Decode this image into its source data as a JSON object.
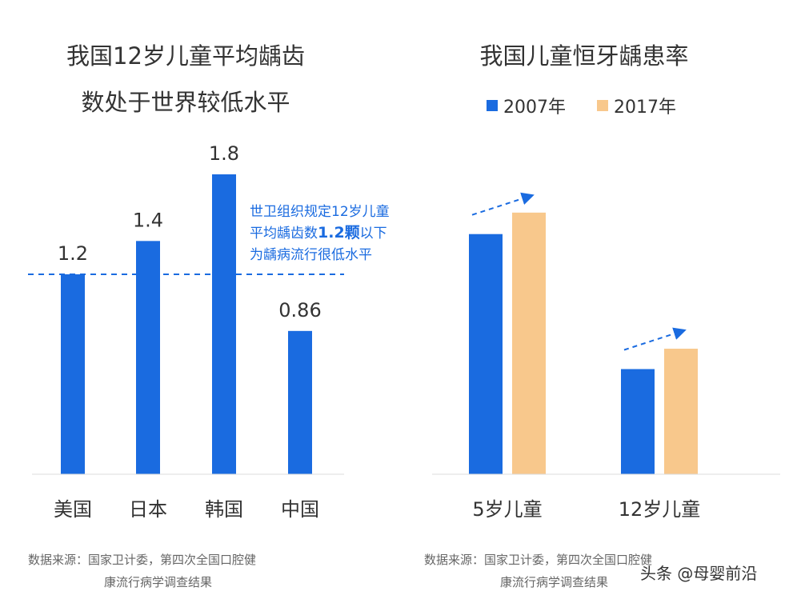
{
  "colors": {
    "blue": "#1a6be0",
    "orange": "#f8c88c",
    "text": "#333333",
    "source": "#555555",
    "annotation": "#1a6be0"
  },
  "chart_data": [
    {
      "type": "bar",
      "title": [
        "我国12岁儿童平均龋齿",
        "数处于世界较低水平"
      ],
      "categories": [
        "美国",
        "日本",
        "韩国",
        "中国"
      ],
      "values": [
        1.2,
        1.4,
        1.8,
        0.86
      ],
      "data_labels": [
        "1.2",
        "1.4",
        "1.8",
        "0.86"
      ],
      "reference_line": {
        "value": 1.2,
        "style": "dashed"
      },
      "annotation": [
        "世卫组织规定12岁儿童",
        "平均龋齿数",
        "1.2颗",
        "以下",
        "为龋病流行很低水平"
      ],
      "ylim": [
        0,
        1.8
      ],
      "grid": false,
      "source": [
        "数据来源：国家卫计委，第四次全国口腔健",
        "康流行病学调查结果"
      ]
    },
    {
      "type": "bar",
      "title": "我国儿童恒牙龋患率",
      "categories": [
        "5岁儿童",
        "12岁儿童"
      ],
      "series": [
        {
          "name": "2007年",
          "values": [
            66,
            28.9
          ]
        },
        {
          "name": "2017年",
          "values": [
            71.9,
            34.5
          ]
        }
      ],
      "legend": "top",
      "trend_arrows": true,
      "grid": false,
      "source": [
        "数据来源：国家卫计委，第四次全国口腔健",
        "康流行病学调查结果"
      ]
    }
  ],
  "watermark": "头条 @母婴前沿"
}
